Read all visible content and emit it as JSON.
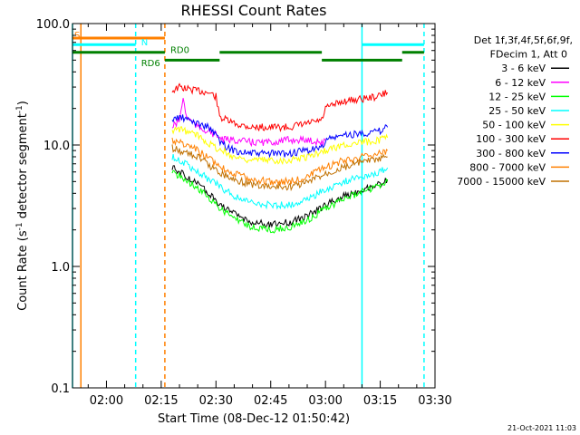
{
  "chart_data": {
    "type": "line",
    "title": "RHESSI Count Rates",
    "xlabel": "Start Time (08-Dec-12 01:50:42)",
    "ylabel_main": "Count Rate (s",
    "ylabel_sup1": "-1",
    "ylabel_mid": " detector segment",
    "ylabel_sup2": "-1",
    "ylabel_end": ")",
    "y_scale": "log",
    "ylim": [
      0.1,
      100.0
    ],
    "xlim": [
      "01:50:42",
      "03:30:00"
    ],
    "x_ticks": [
      "02:00",
      "02:15",
      "02:30",
      "02:45",
      "03:00",
      "03:15",
      "03:30"
    ],
    "y_ticks": [
      "0.1",
      "1.0",
      "10.0",
      "100.0"
    ],
    "legend": {
      "header": [
        "Det 1f,3f,4f,5f,6f,9f,",
        "FDecim 1, Att 0"
      ],
      "placement": "right",
      "entries": [
        {
          "label": "3 - 6 keV",
          "color": "#000000"
        },
        {
          "label": "6 - 12 keV",
          "color": "#ff00ff"
        },
        {
          "label": "12 - 25 keV",
          "color": "#00ff00"
        },
        {
          "label": "25 - 50 keV",
          "color": "#00ffff"
        },
        {
          "label": "50 - 100 keV",
          "color": "#ffff00"
        },
        {
          "label": "100 - 300 keV",
          "color": "#ff0000"
        },
        {
          "label": "300 - 800 keV",
          "color": "#0000ff"
        },
        {
          "label": "800 - 7000 keV",
          "color": "#ff8000"
        },
        {
          "label": "7000 - 15000 keV",
          "color": "#c07000"
        }
      ]
    },
    "series": [
      {
        "name": "100 - 300 keV",
        "color": "#ff0000",
        "x": [
          "02:18",
          "02:20",
          "02:22",
          "02:25",
          "02:28",
          "02:30",
          "02:31",
          "02:35",
          "02:40",
          "02:45",
          "02:50",
          "02:55",
          "02:59",
          "03:00",
          "03:05",
          "03:10",
          "03:14",
          "03:17"
        ],
        "y": [
          28,
          30,
          29,
          28,
          27,
          25,
          17,
          15,
          14,
          14,
          14,
          15,
          16,
          20,
          23,
          24,
          25,
          27
        ]
      },
      {
        "name": "6 - 12 keV",
        "color": "#ff00ff",
        "x": [
          "02:18",
          "02:20",
          "02:21",
          "02:22",
          "02:25",
          "02:28",
          "02:30",
          "02:32",
          "02:35",
          "02:40",
          "02:45",
          "02:50",
          "02:55",
          "02:59",
          "03:00"
        ],
        "y": [
          14,
          16,
          24,
          17,
          14,
          13,
          12,
          11,
          11,
          10.5,
          10.5,
          11,
          11,
          10.5,
          11
        ]
      },
      {
        "name": "300 - 800 keV",
        "color": "#0000ff",
        "x": [
          "02:18",
          "02:20",
          "02:25",
          "02:28",
          "02:30",
          "02:32",
          "02:35",
          "02:40",
          "02:45",
          "02:50",
          "02:55",
          "02:59",
          "03:00",
          "03:05",
          "03:10",
          "03:15",
          "03:17"
        ],
        "y": [
          16,
          17,
          15,
          14,
          12,
          10,
          9,
          8.5,
          8.5,
          8.5,
          9,
          9.5,
          11,
          12,
          12.5,
          13,
          14
        ]
      },
      {
        "name": "50 - 100 keV",
        "color": "#ffff00",
        "x": [
          "02:18",
          "02:20",
          "02:25",
          "02:30",
          "02:35",
          "02:40",
          "02:45",
          "02:50",
          "02:55",
          "03:00",
          "03:05",
          "03:10",
          "03:15",
          "03:17"
        ],
        "y": [
          13,
          13.5,
          12,
          9.5,
          8,
          7.5,
          7.5,
          7.5,
          8,
          9,
          10,
          10.5,
          11,
          11.5
        ]
      },
      {
        "name": "800 - 7000 keV",
        "color": "#ff8000",
        "x": [
          "02:18",
          "02:20",
          "02:25",
          "02:30",
          "02:35",
          "02:40",
          "02:45",
          "02:50",
          "02:55",
          "03:00",
          "03:05",
          "03:10",
          "03:15",
          "03:17"
        ],
        "y": [
          11,
          10.5,
          9,
          7,
          5.8,
          5.2,
          5,
          5,
          5.5,
          6.5,
          7.5,
          8,
          8.5,
          9
        ]
      },
      {
        "name": "7000 - 15000 keV",
        "color": "#c07000",
        "x": [
          "02:18",
          "02:20",
          "02:25",
          "02:30",
          "02:35",
          "02:40",
          "02:45",
          "02:50",
          "02:55",
          "03:00",
          "03:05",
          "03:10",
          "03:15",
          "03:17"
        ],
        "y": [
          9.5,
          9,
          8,
          6.2,
          5.2,
          4.7,
          4.5,
          4.5,
          4.9,
          5.8,
          6.6,
          7.2,
          7.6,
          8
        ]
      },
      {
        "name": "25 - 50 keV",
        "color": "#00ffff",
        "x": [
          "02:18",
          "02:20",
          "02:25",
          "02:30",
          "02:35",
          "02:40",
          "02:45",
          "02:50",
          "02:55",
          "03:00",
          "03:05",
          "03:10",
          "03:15",
          "03:17"
        ],
        "y": [
          8,
          7.5,
          6,
          4.8,
          3.8,
          3.3,
          3.2,
          3.2,
          3.6,
          4.3,
          5,
          5.5,
          6,
          6.5
        ]
      },
      {
        "name": "3 - 6 keV",
        "color": "#000000",
        "x": [
          "02:18",
          "02:20",
          "02:25",
          "02:30",
          "02:35",
          "02:40",
          "02:45",
          "02:50",
          "02:55",
          "03:00",
          "03:05",
          "03:10",
          "03:15",
          "03:17"
        ],
        "y": [
          6.5,
          6,
          4.8,
          3.5,
          2.7,
          2.3,
          2.2,
          2.3,
          2.6,
          3.2,
          3.8,
          4.3,
          4.8,
          5.2
        ]
      },
      {
        "name": "12 - 25 keV",
        "color": "#00ff00",
        "x": [
          "02:18",
          "02:20",
          "02:25",
          "02:30",
          "02:35",
          "02:40",
          "02:45",
          "02:50",
          "02:55",
          "03:00",
          "03:05",
          "03:10",
          "03:15",
          "03:17"
        ],
        "y": [
          6,
          5.6,
          4.4,
          3.2,
          2.5,
          2.1,
          2,
          2.1,
          2.4,
          3,
          3.6,
          4.1,
          4.6,
          5
        ]
      }
    ],
    "attenuator_bars": [
      {
        "label": "S",
        "color": "#ff8000",
        "x_start": "01:50:42",
        "x_end": "02:16",
        "level": 76
      },
      {
        "label": "N",
        "color": "#00ffff",
        "x_start": "01:50:42",
        "x_end": "02:08",
        "level": 67
      },
      {
        "label": "N",
        "color": "#00ffff",
        "x_start": "03:10",
        "x_end": "03:27",
        "level": 67
      },
      {
        "label": "RD0",
        "color": "#008000",
        "x_start": "01:50:42",
        "x_end": "02:16",
        "level": 58
      },
      {
        "label": "RD6",
        "color": "#008000",
        "x_start": "02:16",
        "x_end": "02:31",
        "level": 50
      },
      {
        "label": "RD0",
        "color": "#008000",
        "x_start": "02:31",
        "x_end": "02:59",
        "level": 58
      },
      {
        "label": "",
        "color": "#008000",
        "x_start": "02:59",
        "x_end": "03:21",
        "level": 50
      },
      {
        "label": "",
        "color": "#008000",
        "x_start": "03:21",
        "x_end": "03:27",
        "level": 58
      }
    ],
    "bar_labels": [
      {
        "text": "S",
        "color": "#ff8000",
        "x": "01:50:42",
        "level": 80
      },
      {
        "text": "N",
        "color": "#00ffff",
        "x": "02:09",
        "level": 70
      },
      {
        "text": "RD0",
        "color": "#008000",
        "x": "02:17",
        "level": 60
      },
      {
        "text": "RD6",
        "color": "#008000",
        "x": "02:09",
        "level": 47
      }
    ],
    "vertical_markers": [
      {
        "x": "01:50:42",
        "color": "#00ffff",
        "style": "solid"
      },
      {
        "x": "01:53",
        "color": "#ff8000",
        "style": "solid"
      },
      {
        "x": "02:08",
        "color": "#00ffff",
        "style": "dashed"
      },
      {
        "x": "02:16",
        "color": "#ff8000",
        "style": "dashed"
      },
      {
        "x": "03:10",
        "color": "#00ffff",
        "style": "solid"
      },
      {
        "x": "03:27",
        "color": "#00ffff",
        "style": "dashed"
      }
    ],
    "footer_date": "21-Oct-2021 11:03"
  }
}
